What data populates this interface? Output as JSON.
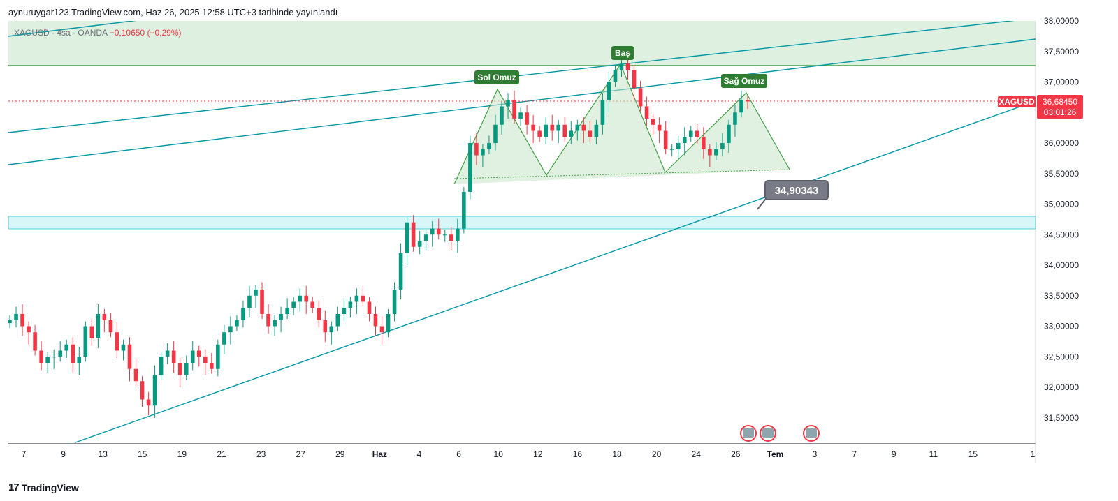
{
  "header": {
    "published": "aynuruygar123 TradingView.com, Haz 26, 2025 12:58 UTC+3 tarihinde yayınlandı"
  },
  "legend": {
    "symbol": "XAGUSD · 4sa · OANDA",
    "change": "−0,10650 (−0,29%)"
  },
  "price_tag": {
    "symbol": "XAGUSD",
    "price": "36,68450",
    "countdown": "03:01:26",
    "color": "#f23645"
  },
  "callout": {
    "value": "34,90343"
  },
  "pattern_labels": {
    "left": "Sol Omuz",
    "head": "Baş",
    "right": "Sağ Omuz"
  },
  "footer": {
    "brand": "TradingView"
  },
  "colors": {
    "up": "#089981",
    "down": "#f23645",
    "trend": "#0097a7",
    "pattern": "#43a047",
    "zone": "#b2ebf2"
  },
  "chart_data": {
    "type": "candlestick",
    "y_ticks": [
      "31,50000",
      "32,00000",
      "32,50000",
      "33,00000",
      "33,50000",
      "34,00000",
      "34,50000",
      "35,00000",
      "35,50000",
      "36,00000",
      "36,50000",
      "37,00000",
      "37,50000",
      "38,00000"
    ],
    "x_ticks": [
      "7",
      "9",
      "13",
      "15",
      "19",
      "21",
      "23",
      "27",
      "29",
      "Haz",
      "4",
      "6",
      "10",
      "12",
      "16",
      "18",
      "20",
      "24",
      "26",
      "Tem",
      "3",
      "7",
      "9",
      "11",
      "15",
      "1"
    ],
    "last_price": 36.6845,
    "candles_approx_close": [
      33.1,
      33.2,
      33.0,
      32.9,
      32.6,
      32.4,
      32.5,
      32.5,
      32.6,
      32.7,
      32.4,
      32.5,
      33.0,
      32.8,
      33.2,
      33.1,
      32.9,
      32.6,
      32.7,
      32.3,
      32.1,
      31.8,
      31.7,
      32.2,
      32.5,
      32.6,
      32.4,
      32.2,
      32.4,
      32.6,
      32.5,
      32.4,
      32.3,
      32.7,
      32.9,
      33.0,
      33.1,
      33.3,
      33.5,
      33.6,
      33.2,
      33.0,
      33.1,
      33.2,
      33.3,
      33.4,
      33.5,
      33.4,
      33.3,
      33.1,
      32.9,
      33.0,
      33.2,
      33.3,
      33.4,
      33.5,
      33.4,
      33.2,
      33.0,
      32.9,
      33.2,
      33.6,
      34.2,
      34.7,
      34.3,
      34.4,
      34.5,
      34.6,
      34.5,
      34.5,
      34.4,
      34.6,
      35.2,
      36.0,
      35.8,
      35.9,
      36.0,
      36.3,
      36.6,
      36.7,
      36.4,
      36.5,
      36.3,
      36.2,
      36.1,
      36.3,
      36.2,
      36.3,
      36.1,
      36.2,
      36.3,
      36.2,
      36.1,
      36.3,
      36.7,
      37.0,
      37.2,
      37.3,
      37.2,
      36.9,
      36.6,
      36.4,
      36.3,
      36.2,
      35.9,
      35.9,
      36.0,
      36.1,
      36.2,
      36.1,
      35.9,
      35.8,
      35.9,
      36.0,
      36.3,
      36.5,
      36.7,
      36.68
    ],
    "annotations": [
      "Sol Omuz",
      "Baş",
      "Sağ Omuz",
      "34,90343"
    ]
  }
}
